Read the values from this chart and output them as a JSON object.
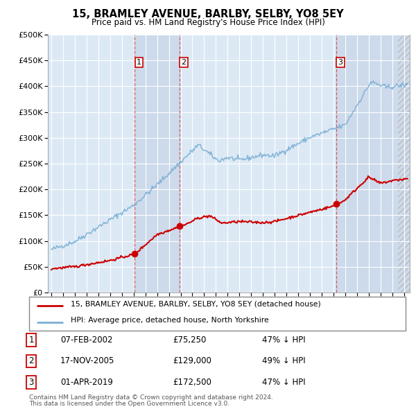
{
  "title": "15, BRAMLEY AVENUE, BARLBY, SELBY, YO8 5EY",
  "subtitle": "Price paid vs. HM Land Registry's House Price Index (HPI)",
  "plot_bg_color": "#dce9f5",
  "grid_color": "#b8cfe0",
  "transactions": [
    {
      "num": 1,
      "date_label": "07-FEB-2002",
      "date_x": 2002.1,
      "price": 75250,
      "hpi_pct": "47% ↓ HPI"
    },
    {
      "num": 2,
      "date_label": "17-NOV-2005",
      "date_x": 2005.9,
      "price": 129000,
      "hpi_pct": "49% ↓ HPI"
    },
    {
      "num": 3,
      "date_label": "01-APR-2019",
      "date_x": 2019.25,
      "price": 172500,
      "hpi_pct": "47% ↓ HPI"
    }
  ],
  "legend_line1": "15, BRAMLEY AVENUE, BARLBY, SELBY, YO8 5EY (detached house)",
  "legend_line2": "HPI: Average price, detached house, North Yorkshire",
  "footer1": "Contains HM Land Registry data © Crown copyright and database right 2024.",
  "footer2": "This data is licensed under the Open Government Licence v3.0.",
  "ylim": [
    0,
    500000
  ],
  "xlim": [
    1994.7,
    2025.5
  ],
  "yticks": [
    0,
    50000,
    100000,
    150000,
    200000,
    250000,
    300000,
    350000,
    400000,
    450000,
    500000
  ],
  "red_line_color": "#cc0000",
  "blue_line_color": "#7aafd4",
  "marker_color": "#cc0000",
  "shade_color": "#ccdaeb"
}
